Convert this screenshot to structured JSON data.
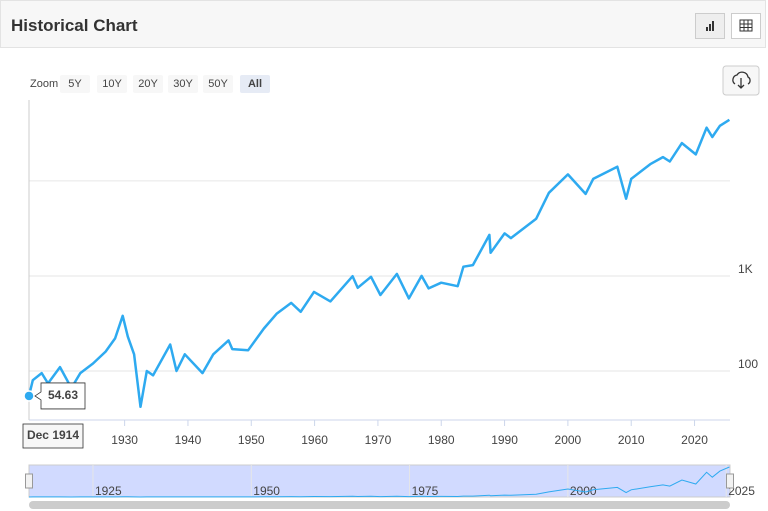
{
  "header": {
    "title": "Historical Chart"
  },
  "zoom": {
    "label": "Zoom",
    "buttons": [
      "5Y",
      "10Y",
      "20Y",
      "30Y",
      "50Y",
      "All"
    ]
  },
  "chart_data": {
    "type": "line",
    "log_y": true,
    "grid": true,
    "x": [
      1914.9,
      1915.5,
      1916.9,
      1917.9,
      1919.8,
      1921.6,
      1923,
      1925,
      1927,
      1928.5,
      1929.7,
      1930.5,
      1931.5,
      1932.5,
      1933.5,
      1934.5,
      1937.2,
      1938.2,
      1939.5,
      1942.3,
      1944,
      1946.4,
      1947,
      1949.5,
      1952,
      1954,
      1956.3,
      1957.8,
      1959.9,
      1962.5,
      1966,
      1966.8,
      1968.9,
      1970.4,
      1973,
      1974.9,
      1976.9,
      1978,
      1980,
      1982.6,
      1983.5,
      1985,
      1987.6,
      1987.8,
      1990,
      1991,
      1995,
      1997,
      2000,
      2002.8,
      2004,
      2007.8,
      2009.2,
      2010,
      2013,
      2015,
      2016.1,
      2018,
      2020.2,
      2021.9,
      2022.8,
      2024,
      2025.5
    ],
    "series": [
      {
        "color": "#2eaaf0",
        "values": [
          54.63,
          80,
          95,
          74,
          110,
          66,
          95,
          120,
          160,
          220,
          381,
          230,
          150,
          42,
          100,
          90,
          190,
          100,
          150,
          95,
          150,
          210,
          170,
          165,
          280,
          400,
          520,
          420,
          680,
          540,
          995,
          750,
          980,
          630,
          1050,
          580,
          1000,
          740,
          850,
          780,
          1250,
          1300,
          2700,
          1750,
          2800,
          2500,
          4000,
          7500,
          11700,
          7300,
          10500,
          14100,
          6500,
          10500,
          15000,
          17800,
          16000,
          25000,
          19000,
          36300,
          29000,
          38000,
          44000
        ]
      }
    ],
    "xlim": [
      1914.9,
      2025.6
    ],
    "xticks": [
      1930,
      1940,
      1950,
      1960,
      1970,
      1980,
      1990,
      2000,
      2010,
      2020
    ],
    "ylim": [
      30.5,
      71000
    ],
    "yticks": [
      100,
      {
        "value": 1000,
        "label": "1K"
      },
      {
        "value": 10000,
        "label": null
      }
    ],
    "tooltip": {
      "date": "Dec 1914"
    },
    "navigator": {
      "xticks": [
        1925,
        1950,
        1975,
        2000,
        2025
      ]
    }
  }
}
